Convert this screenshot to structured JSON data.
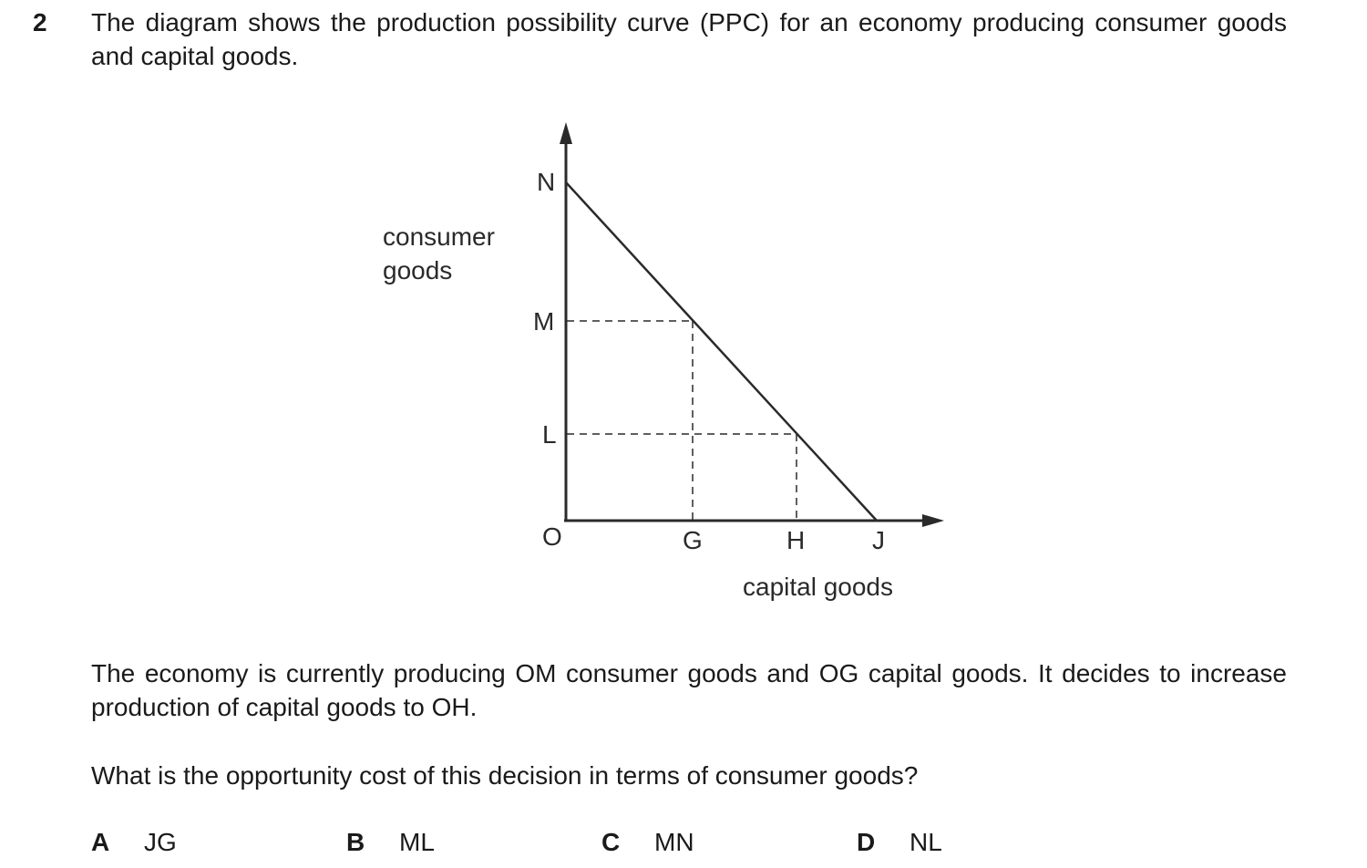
{
  "question": {
    "number": "2",
    "stem": "The diagram shows the production possibility curve (PPC) for an economy producing consumer goods and capital goods.",
    "paragraph1": "The economy is currently producing OM consumer goods and OG capital goods. It decides to increase production of capital goods to OH.",
    "paragraph2": "What is the opportunity cost of this decision in terms of consumer goods?"
  },
  "diagram": {
    "y_axis_label_line1": "consumer",
    "y_axis_label_line2": "goods",
    "x_axis_label": "capital goods",
    "origin_label": "O",
    "y_points": [
      "N",
      "M",
      "L"
    ],
    "x_points": [
      "G",
      "H",
      "J"
    ]
  },
  "options": [
    {
      "letter": "A",
      "text": "JG"
    },
    {
      "letter": "B",
      "text": "ML"
    },
    {
      "letter": "C",
      "text": "MN"
    },
    {
      "letter": "D",
      "text": "NL"
    }
  ],
  "colors": {
    "ink": "#1a1a1a",
    "line": "#2a2a2a",
    "background": "#ffffff"
  }
}
